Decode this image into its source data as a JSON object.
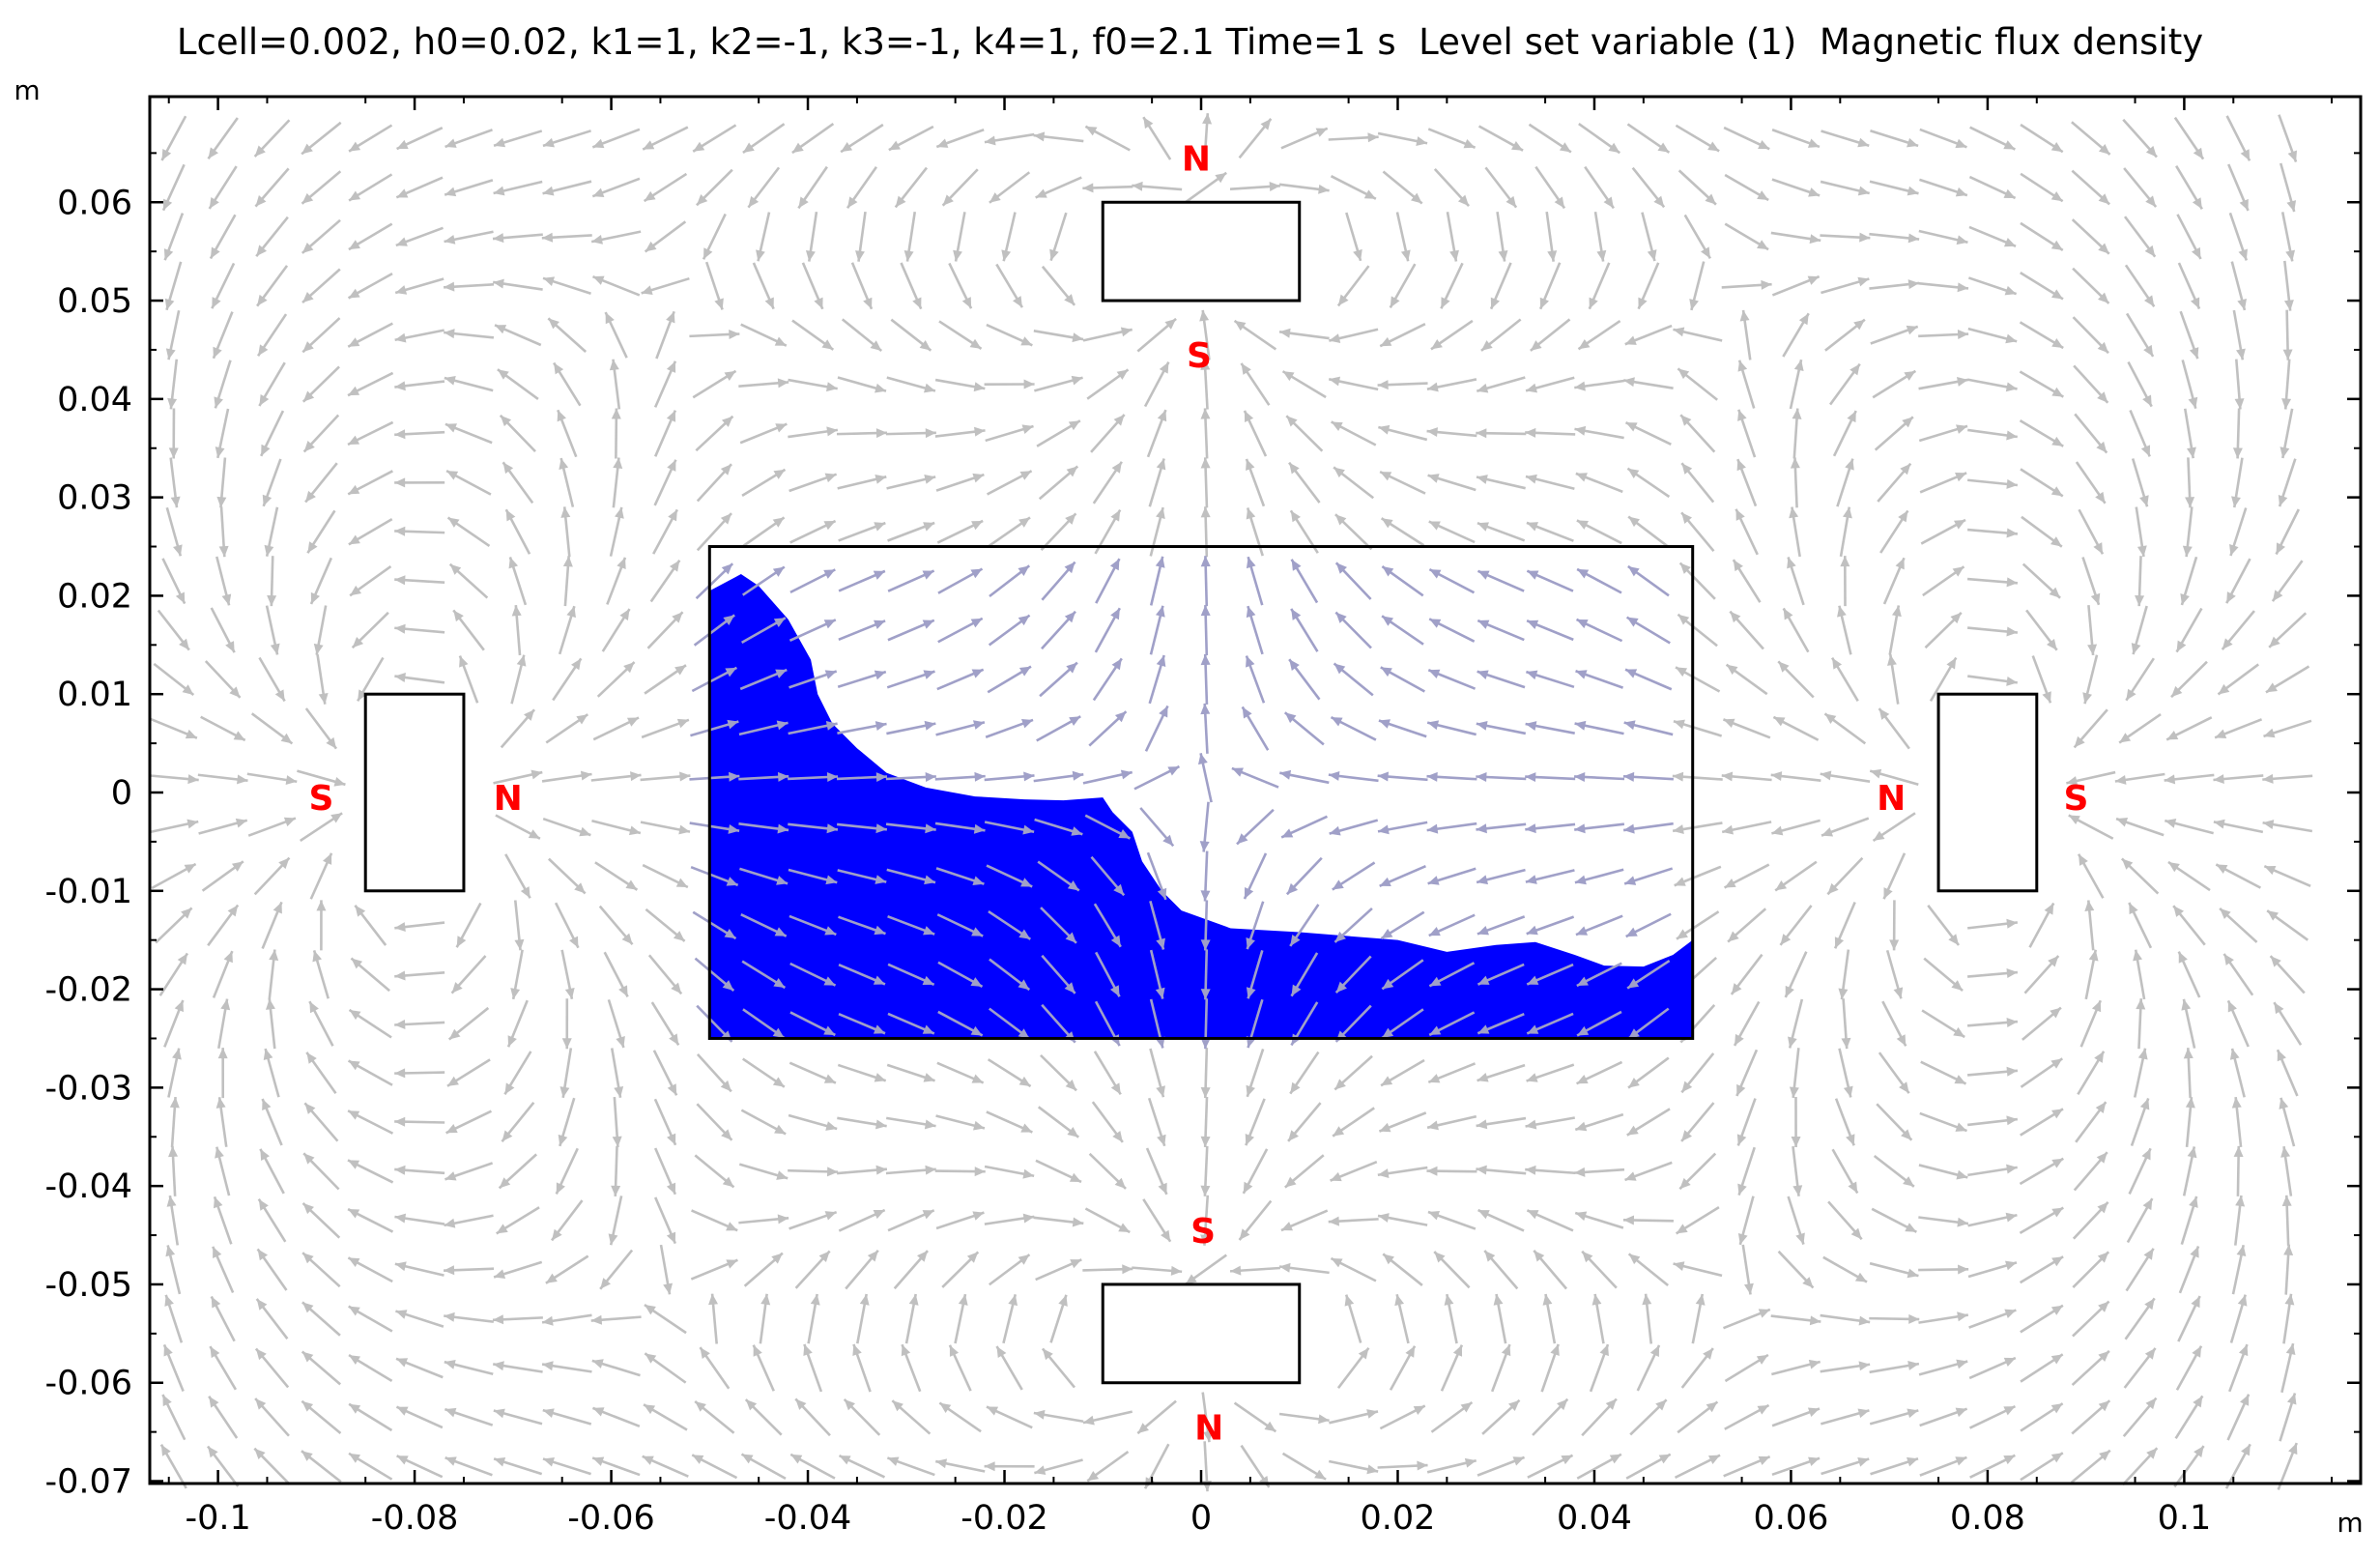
{
  "title": "Lcell=0.002, h0=0.02, k1=1, k2=-1, k3=-1, k4=1, f0=2.1 Time=1 s  Level set variable (1)  Magnetic flux density",
  "chart_data": {
    "type": "2D field plot (surface + arrow)",
    "xlabel": "m",
    "ylabel": "m",
    "xlim": [
      -0.107,
      0.117
    ],
    "ylim": [
      -0.0708,
      0.0705
    ],
    "x_ticks": [
      -0.1,
      -0.08,
      -0.06,
      -0.04,
      -0.02,
      0,
      0.02,
      0.04,
      0.06,
      0.08,
      0.1
    ],
    "x_tick_labels": [
      "-0.1",
      "-0.08",
      "-0.06",
      "-0.04",
      "-0.02",
      "0",
      "0.02",
      "0.04",
      "0.06",
      "0.08",
      "0.1"
    ],
    "y_ticks": [
      0.06,
      0.05,
      0.04,
      0.03,
      0.02,
      0.01,
      0,
      -0.01,
      -0.02,
      -0.03,
      -0.04,
      -0.05,
      -0.06,
      -0.07
    ],
    "y_tick_labels": [
      "0.06",
      "0.05",
      "0.04",
      "0.03",
      "0.02",
      "0.01",
      "0",
      "-0.01",
      "-0.02",
      "-0.03",
      "-0.04",
      "-0.05",
      "-0.06",
      "-0.07"
    ],
    "colors": {
      "fluid": "#0000ff",
      "arrows": "#c0c0c0",
      "pole_labels": "#ff0000",
      "outlines": "#000000"
    },
    "container": {
      "x": [
        -0.05,
        0.05
      ],
      "y": [
        -0.025,
        0.025
      ]
    },
    "magnets": [
      {
        "name": "top",
        "x": [
          -0.01,
          0.01
        ],
        "y": [
          0.05,
          0.06
        ],
        "poles": [
          {
            "label": "N",
            "x": -0.0005,
            "y": 0.0645
          },
          {
            "label": "S",
            "x": -0.0002,
            "y": 0.0445
          }
        ]
      },
      {
        "name": "bottom",
        "x": [
          -0.01,
          0.01
        ],
        "y": [
          -0.06,
          -0.05
        ],
        "poles": [
          {
            "label": "S",
            "x": 0.0002,
            "y": -0.0445
          },
          {
            "label": "N",
            "x": 0.0008,
            "y": -0.0645
          }
        ]
      },
      {
        "name": "left",
        "x": [
          -0.085,
          -0.075
        ],
        "y": [
          -0.01,
          0.01
        ],
        "poles": [
          {
            "label": "S",
            "x": -0.0895,
            "y": -0.0005
          },
          {
            "label": "N",
            "x": -0.0705,
            "y": -0.0005
          }
        ]
      },
      {
        "name": "right",
        "x": [
          0.075,
          0.085
        ],
        "y": [
          -0.01,
          0.01
        ],
        "poles": [
          {
            "label": "N",
            "x": 0.0702,
            "y": -0.0005
          },
          {
            "label": "S",
            "x": 0.089,
            "y": -0.0005
          }
        ]
      }
    ],
    "fluid_interface": [
      [
        -0.05,
        0.0205
      ],
      [
        -0.0468,
        0.0222
      ],
      [
        -0.045,
        0.021
      ],
      [
        -0.042,
        0.0176
      ],
      [
        -0.0397,
        0.0135
      ],
      [
        -0.039,
        0.01
      ],
      [
        -0.0375,
        0.007
      ],
      [
        -0.035,
        0.0045
      ],
      [
        -0.032,
        0.002
      ],
      [
        -0.028,
        0.0005
      ],
      [
        -0.023,
        -0.0004
      ],
      [
        -0.018,
        -0.0007
      ],
      [
        -0.014,
        -0.0008
      ],
      [
        -0.01,
        -0.0005
      ],
      [
        -0.009,
        -0.002
      ],
      [
        -0.007,
        -0.004
      ],
      [
        -0.006,
        -0.007
      ],
      [
        -0.004,
        -0.01
      ],
      [
        -0.002,
        -0.012
      ],
      [
        0.003,
        -0.0138
      ],
      [
        0.01,
        -0.0142
      ],
      [
        0.02,
        -0.015
      ],
      [
        0.025,
        -0.0162
      ],
      [
        0.03,
        -0.0155
      ],
      [
        0.034,
        -0.0152
      ],
      [
        0.038,
        -0.0165
      ],
      [
        0.041,
        -0.0176
      ],
      [
        0.045,
        -0.0177
      ],
      [
        0.048,
        -0.0165
      ],
      [
        0.05,
        -0.015
      ]
    ]
  }
}
